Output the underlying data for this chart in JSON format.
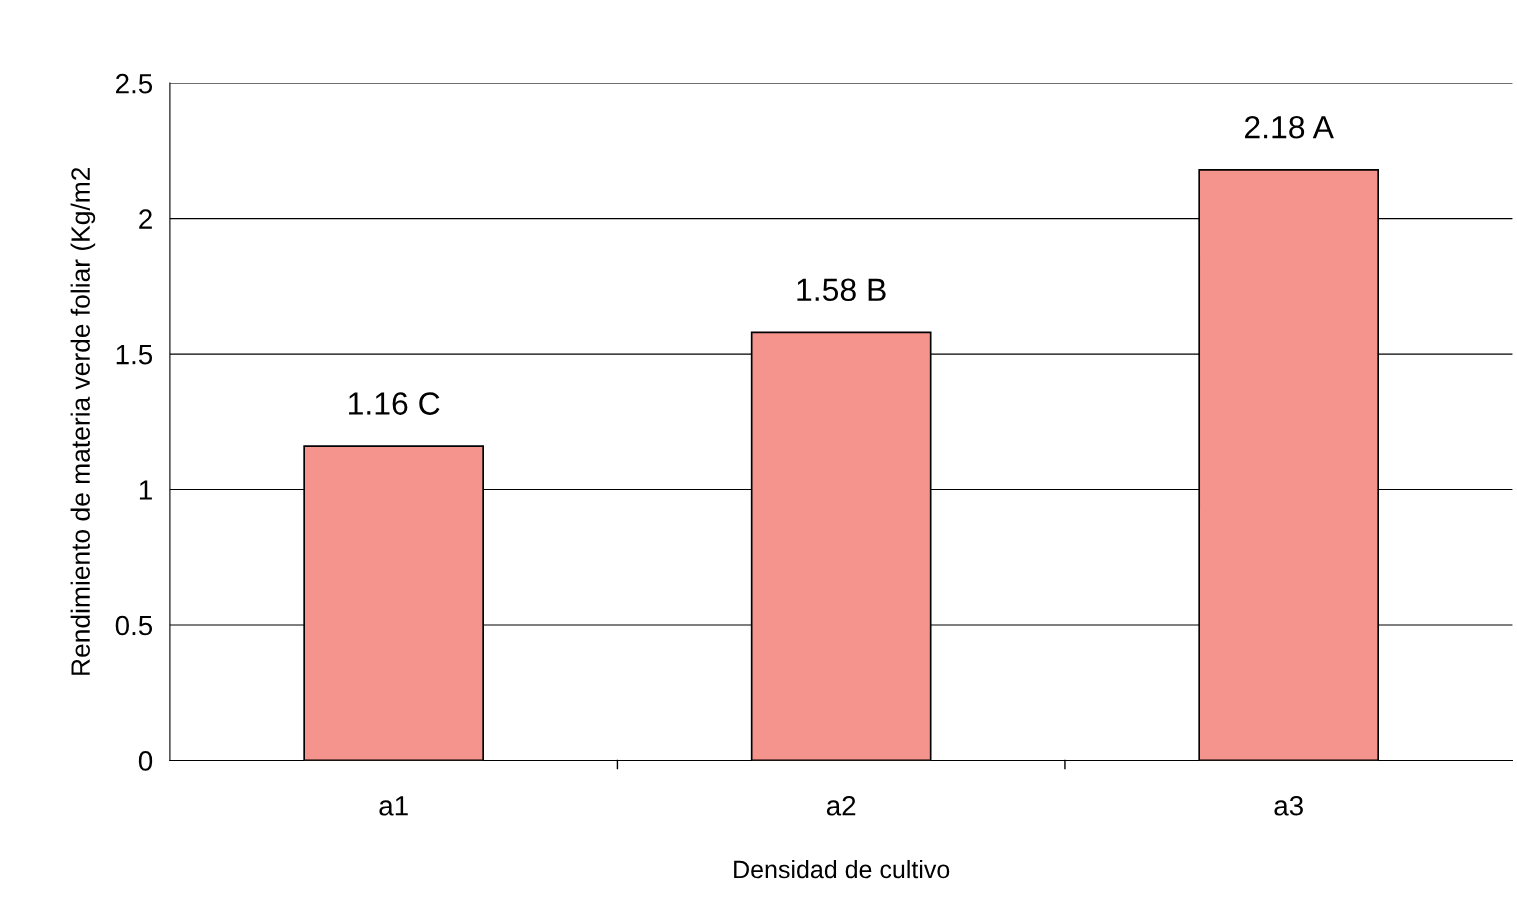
{
  "chart_data": {
    "type": "bar",
    "xlabel": "Densidad de cultivo",
    "ylabel": "Rendimiento de materia verde foliar (Kg/m2",
    "categories": [
      "a1",
      "a2",
      "a3"
    ],
    "values": [
      1.16,
      1.58,
      2.18
    ],
    "value_labels": [
      "1.16 C",
      "1.58 B",
      "2.18 A"
    ],
    "color": "#f4948c",
    "ylim": [
      0,
      2.5
    ],
    "yticks": [
      0,
      0.5,
      1,
      1.5,
      2,
      2.5
    ],
    "grid": "y",
    "legend": false
  }
}
